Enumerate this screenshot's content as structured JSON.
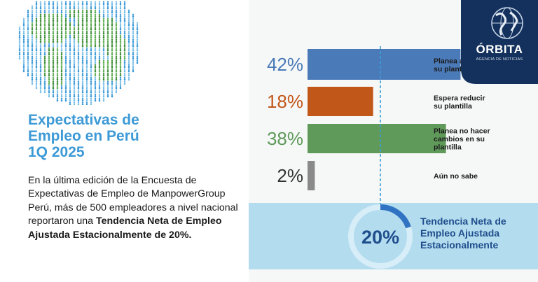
{
  "report": {
    "title_lines": [
      "Expectativas de",
      "Empleo en Perú",
      "1Q 2025"
    ],
    "body_intro": "En la última edición de la Encuesta de Expectativas de Empleo de ManpowerGroup Perú, más de 500 empleadores a nivel nacional reportaron una ",
    "body_bold": "Tendencia Neta de Empleo Ajustada Estacionalmente de 20%."
  },
  "logo": {
    "brand": "ÓRBITA",
    "tagline": "AGENCIA DE NOTICIAS",
    "icon": "globe-icon"
  },
  "colors": {
    "title_blue": "#3d9ad6",
    "bar_blue": "#4b7ab8",
    "bar_orange": "#c2571a",
    "bar_green": "#5f9a5a",
    "bar_gray": "#8a8a8a",
    "band": "#b4dcef",
    "ring": "#2f8fd0",
    "dark_blue": "#1f4e8c",
    "logo_bg": "#13315c"
  },
  "chart_data": {
    "type": "bar",
    "orientation": "horizontal",
    "categories": [
      [
        "Planea aumentar",
        "su plantilla"
      ],
      [
        "Espera reducir",
        "su plantilla"
      ],
      [
        "Planea no hacer",
        "cambios en su",
        "plantilla"
      ],
      [
        "Aún no sabe"
      ]
    ],
    "values": [
      42,
      18,
      38,
      2
    ],
    "value_labels": [
      "42%",
      "18%",
      "38%",
      "2%"
    ],
    "bar_colors": [
      "#4b7ab8",
      "#c2571a",
      "#5f9a5a",
      "#8a8a8a"
    ],
    "reference_line": 20,
    "xlim": [
      0,
      50
    ],
    "net_employment_outlook": {
      "value_label": "20%",
      "label_lines": [
        "Tendencia Neta de",
        "Empleo Ajustada",
        "Estacionalmente"
      ]
    }
  }
}
